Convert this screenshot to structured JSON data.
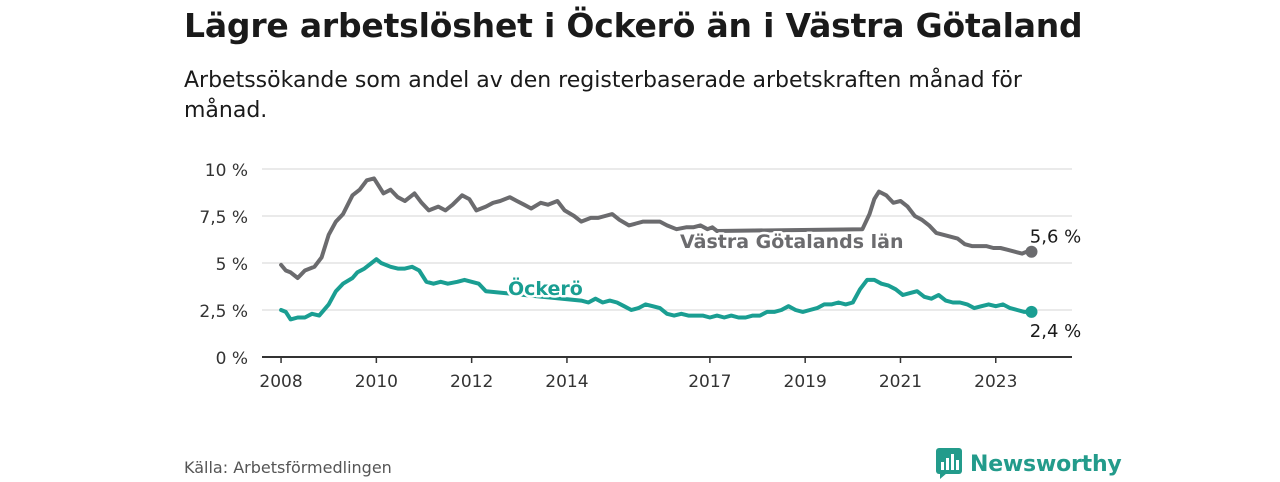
{
  "title": "Lägre arbetslöshet i Öckerö än i Västra Götaland",
  "subtitle": "Arbetssökande som andel av den registerbaserade arbetskraften månad för månad.",
  "source": "Källa: Arbetsförmedlingen",
  "brand": "Newsworthy",
  "colors": {
    "gray": "#6b6b6e",
    "teal": "#1a9e92",
    "grid": "#dedede",
    "brand": "#239b8b"
  },
  "chart_data": {
    "type": "line",
    "title": "Lägre arbetslöshet i Öckerö än i Västra Götaland",
    "xlabel": "",
    "ylabel": "",
    "x_tick_labels": [
      "2008",
      "2010",
      "2012",
      "2014",
      "2017",
      "2019",
      "2021",
      "2023"
    ],
    "x_tick_values": [
      2008,
      2010,
      2012,
      2014,
      2017,
      2019,
      2021,
      2023
    ],
    "y_tick_labels": [
      "0 %",
      "2,5 %",
      "5 %",
      "7,5 %",
      "10 %"
    ],
    "y_tick_values": [
      0,
      2.5,
      5,
      7.5,
      10
    ],
    "xlim": [
      2007.6,
      2024.6
    ],
    "ylim": [
      0,
      10
    ],
    "grid": true,
    "series": [
      {
        "name": "Västra Götalands län",
        "label": "Västra Götalands län",
        "end_label": "5,6 %",
        "color": "#6b6b6e",
        "x": [
          2008.0,
          2008.1,
          2008.2,
          2008.35,
          2008.5,
          2008.7,
          2008.85,
          2009.0,
          2009.15,
          2009.3,
          2009.5,
          2009.65,
          2009.8,
          2009.95,
          2010.0,
          2010.15,
          2010.3,
          2010.45,
          2010.6,
          2010.8,
          2010.95,
          2011.1,
          2011.3,
          2011.45,
          2011.6,
          2011.8,
          2011.95,
          2012.1,
          2012.3,
          2012.45,
          2012.6,
          2012.8,
          2012.95,
          2013.1,
          2013.25,
          2013.45,
          2013.6,
          2013.8,
          2013.95,
          2014.15,
          2014.3,
          2014.5,
          2014.65,
          2014.8,
          2014.95,
          2015.1,
          2015.3,
          2015.45,
          2015.6,
          2015.8,
          2015.95,
          2016.1,
          2016.3,
          2016.5,
          2016.65,
          2016.8,
          2016.95,
          2017.05,
          2017.15,
          2020.2,
          2020.35,
          2020.45,
          2020.55,
          2020.7,
          2020.85,
          2021.0,
          2021.15,
          2021.3,
          2021.45,
          2021.6,
          2021.75,
          2021.9,
          2022.05,
          2022.2,
          2022.35,
          2022.5,
          2022.65,
          2022.8,
          2022.95,
          2023.1,
          2023.25,
          2023.4,
          2023.55,
          2023.65,
          2023.75
        ],
        "values": [
          4.9,
          4.6,
          4.5,
          4.2,
          4.6,
          4.8,
          5.3,
          6.5,
          7.2,
          7.6,
          8.6,
          8.9,
          9.4,
          9.5,
          9.3,
          8.7,
          8.9,
          8.5,
          8.3,
          8.7,
          8.2,
          7.8,
          8.0,
          7.8,
          8.1,
          8.6,
          8.4,
          7.8,
          8.0,
          8.2,
          8.3,
          8.5,
          8.3,
          8.1,
          7.9,
          8.2,
          8.1,
          8.3,
          7.8,
          7.5,
          7.2,
          7.4,
          7.4,
          7.5,
          7.6,
          7.3,
          7.0,
          7.1,
          7.2,
          7.2,
          7.2,
          7.0,
          6.8,
          6.9,
          6.9,
          7.0,
          6.8,
          6.9,
          6.7,
          6.8,
          7.6,
          8.4,
          8.8,
          8.6,
          8.2,
          8.3,
          8.0,
          7.5,
          7.3,
          7.0,
          6.6,
          6.5,
          6.4,
          6.3,
          6.0,
          5.9,
          5.9,
          5.9,
          5.8,
          5.8,
          5.7,
          5.6,
          5.5,
          5.6,
          5.6
        ]
      },
      {
        "name": "Öckerö",
        "label": "Öckerö",
        "end_label": "2,4 %",
        "color": "#1a9e92",
        "x": [
          2008.0,
          2008.1,
          2008.2,
          2008.35,
          2008.5,
          2008.65,
          2008.8,
          2009.0,
          2009.15,
          2009.3,
          2009.5,
          2009.6,
          2009.75,
          2009.9,
          2010.0,
          2010.1,
          2010.3,
          2010.45,
          2010.6,
          2010.75,
          2010.9,
          2011.05,
          2011.2,
          2011.35,
          2011.5,
          2011.7,
          2011.85,
          2012.0,
          2012.15,
          2012.3,
          2014.3,
          2014.45,
          2014.6,
          2014.75,
          2014.9,
          2015.05,
          2015.2,
          2015.35,
          2015.5,
          2015.65,
          2015.8,
          2015.95,
          2016.1,
          2016.25,
          2016.4,
          2016.55,
          2016.7,
          2016.85,
          2017.0,
          2017.15,
          2017.3,
          2017.45,
          2017.6,
          2017.75,
          2017.9,
          2018.05,
          2018.2,
          2018.35,
          2018.5,
          2018.65,
          2018.8,
          2018.95,
          2019.1,
          2019.25,
          2019.4,
          2019.55,
          2019.7,
          2019.85,
          2020.0,
          2020.15,
          2020.3,
          2020.45,
          2020.6,
          2020.75,
          2020.9,
          2021.05,
          2021.2,
          2021.35,
          2021.5,
          2021.65,
          2021.8,
          2021.95,
          2022.1,
          2022.25,
          2022.4,
          2022.55,
          2022.7,
          2022.85,
          2023.0,
          2023.15,
          2023.3,
          2023.45,
          2023.6,
          2023.75
        ],
        "values": [
          2.5,
          2.4,
          2.0,
          2.1,
          2.1,
          2.3,
          2.2,
          2.8,
          3.5,
          3.9,
          4.2,
          4.5,
          4.7,
          5.0,
          5.2,
          5.0,
          4.8,
          4.7,
          4.7,
          4.8,
          4.6,
          4.0,
          3.9,
          4.0,
          3.9,
          4.0,
          4.1,
          4.0,
          3.9,
          3.5,
          3.0,
          2.9,
          3.1,
          2.9,
          3.0,
          2.9,
          2.7,
          2.5,
          2.6,
          2.8,
          2.7,
          2.6,
          2.3,
          2.2,
          2.3,
          2.2,
          2.2,
          2.2,
          2.1,
          2.2,
          2.1,
          2.2,
          2.1,
          2.1,
          2.2,
          2.2,
          2.4,
          2.4,
          2.5,
          2.7,
          2.5,
          2.4,
          2.5,
          2.6,
          2.8,
          2.8,
          2.9,
          2.8,
          2.9,
          3.6,
          4.1,
          4.1,
          3.9,
          3.8,
          3.6,
          3.3,
          3.4,
          3.5,
          3.2,
          3.1,
          3.3,
          3.0,
          2.9,
          2.9,
          2.8,
          2.6,
          2.7,
          2.8,
          2.7,
          2.8,
          2.6,
          2.5,
          2.4,
          2.4
        ]
      }
    ]
  }
}
